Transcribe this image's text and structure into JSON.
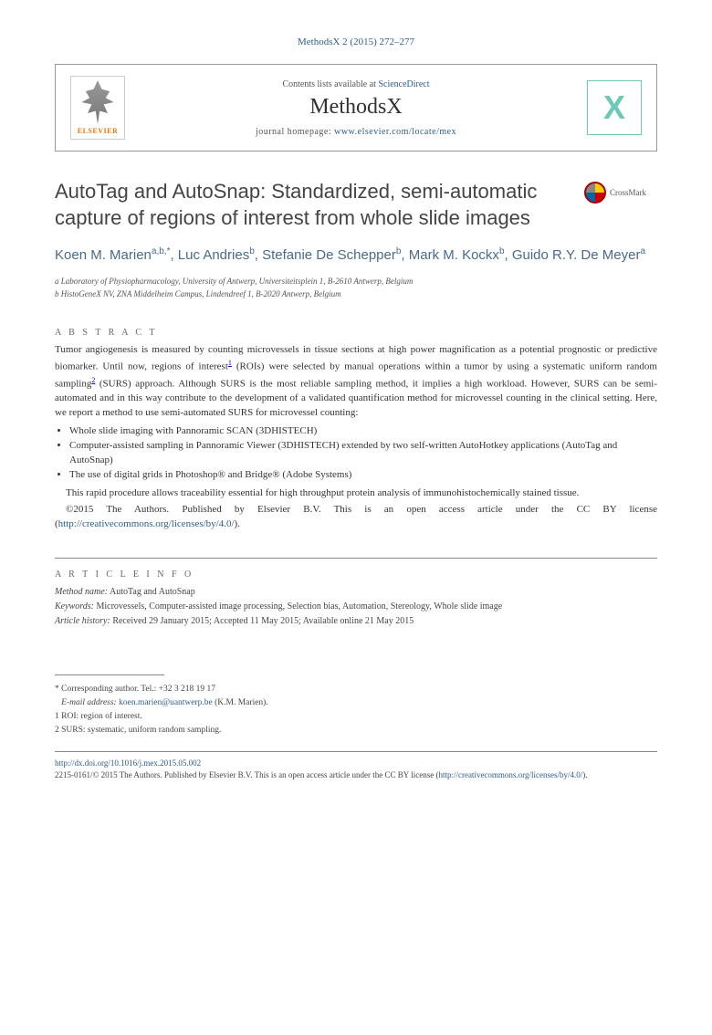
{
  "journal_ref": "MethodsX 2 (2015) 272–277",
  "header": {
    "contents_text": "Contents lists available at ",
    "contents_link": "ScienceDirect",
    "journal_name": "MethodsX",
    "homepage_label": "journal homepage: ",
    "homepage_url": "www.elsevier.com/locate/mex",
    "elsevier_label": "ELSEVIER",
    "mx_label": "X"
  },
  "title": "AutoTag and AutoSnap: Standardized, semi-automatic capture of regions of interest from whole slide images",
  "crossmark_label": "CrossMark",
  "authors_html": "Koen M. Marien<sup>a,b,*</sup>, Luc Andries<sup>b</sup>, Stefanie De Schepper<sup>b</sup>, Mark M. Kockx<sup>b</sup>, Guido R.Y. De Meyer<sup>a</sup>",
  "affiliations": [
    "a Laboratory of Physiopharmacology, University of Antwerp, Universiteitsplein 1, B-2610 Antwerp, Belgium",
    "b HistoGeneX NV, ZNA Middelheim Campus, Lindendreef 1, B-2020 Antwerp, Belgium"
  ],
  "abstract": {
    "label": "A B S T R A C T",
    "body_pre": "Tumor angiogenesis is measured by counting microvessels in tissue sections at high power magnification as a potential prognostic or predictive biomarker. Until now, regions of interest",
    "fn1": "1",
    "body_mid": " (ROIs) were selected by manual operations within a tumor by using a systematic uniform random sampling",
    "fn2": "2",
    "body_post": " (SURS) approach. Although SURS is the most reliable sampling method, it implies a high workload. However, SURS can be semi-automated and in this way contribute to the development of a validated quantification method for microvessel counting in the clinical setting. Here, we report a method to use semi-automated SURS for microvessel counting:",
    "bullets": [
      "Whole slide imaging with Pannoramic SCAN (3DHISTECH)",
      "Computer-assisted sampling in Pannoramic Viewer (3DHISTECH) extended by two self-written AutoHotkey applications (AutoTag and AutoSnap)",
      "The use of digital grids in Photoshop® and Bridge® (Adobe Systems)"
    ],
    "closing": "This rapid procedure allows traceability essential for high throughput protein analysis of immunohistochemically stained tissue.",
    "copyright_pre": "©2015 The Authors. Published by Elsevier B.V. This is an open access article under the CC BY license (",
    "copyright_link": "http://creativecommons.org/licenses/by/4.0/",
    "copyright_post": ")."
  },
  "article_info": {
    "label": "A R T I C L E  I N F O",
    "method_label": "Method name:",
    "method_value": " AutoTag and AutoSnap",
    "keywords_label": "Keywords:",
    "keywords_value": " Microvessels, Computer-assisted image processing, Selection bias, Automation, Stereology, Whole slide image",
    "history_label": "Article history:",
    "history_value": " Received 29 January 2015; Accepted 11 May 2015; Available online 21 May 2015"
  },
  "footnotes": {
    "corr_label": "* Corresponding author. Tel.: +32 3 218 19 17",
    "email_label": "E-mail address: ",
    "email_link": "koen.marien@uantwerp.be",
    "email_post": " (K.M. Marien).",
    "fn1": "1  ROI: region of interest.",
    "fn2": "2  SURS: systematic, uniform random sampling."
  },
  "footer": {
    "doi": "http://dx.doi.org/10.1016/j.mex.2015.05.002",
    "issn_line_pre": "2215-0161/© 2015 The Authors. Published by Elsevier B.V. This is an open access article under the CC BY license (",
    "issn_link": "http://creativecommons.org/licenses/by/4.0/",
    "issn_line_post": ")."
  }
}
